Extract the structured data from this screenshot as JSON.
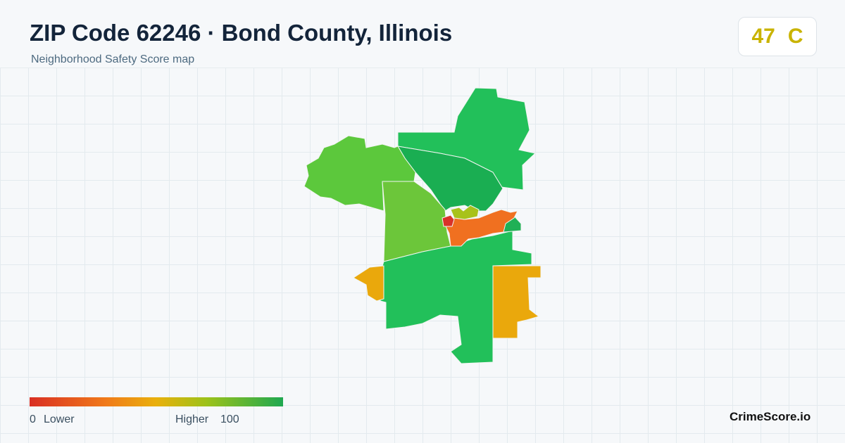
{
  "header": {
    "title": "ZIP Code 62246 · Bond County, Illinois",
    "subtitle": "Neighborhood Safety Score map",
    "score": 47,
    "grade": "C"
  },
  "legend": {
    "min": 0,
    "low_label": "Lower",
    "high_label": "Higher",
    "max": 100
  },
  "footer": {
    "brand": "CrimeScore.io"
  }
}
